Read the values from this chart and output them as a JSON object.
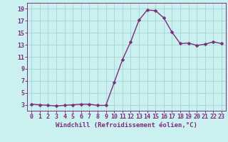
{
  "x": [
    0,
    1,
    2,
    3,
    4,
    5,
    6,
    7,
    8,
    9,
    10,
    11,
    12,
    13,
    14,
    15,
    16,
    17,
    18,
    19,
    20,
    21,
    22,
    23
  ],
  "y": [
    3.1,
    3.0,
    2.9,
    2.8,
    2.9,
    3.0,
    3.1,
    3.1,
    2.9,
    2.9,
    6.7,
    10.5,
    13.5,
    17.1,
    18.8,
    18.7,
    17.5,
    15.1,
    13.2,
    13.3,
    12.9,
    13.1,
    13.5,
    13.2
  ],
  "line_color": "#7B2D7B",
  "marker": "D",
  "marker_size": 2.5,
  "bg_color": "#cbf0f0",
  "grid_color": "#a8d8d8",
  "xlabel": "Windchill (Refroidissement éolien,°C)",
  "xlim": [
    -0.5,
    23.5
  ],
  "ylim": [
    2,
    20
  ],
  "yticks": [
    3,
    5,
    7,
    9,
    11,
    13,
    15,
    17,
    19
  ],
  "xticks": [
    0,
    1,
    2,
    3,
    4,
    5,
    6,
    7,
    8,
    9,
    10,
    11,
    12,
    13,
    14,
    15,
    16,
    17,
    18,
    19,
    20,
    21,
    22,
    23
  ],
  "xlabel_fontsize": 6.5,
  "tick_fontsize": 6.0,
  "line_width": 1.0
}
